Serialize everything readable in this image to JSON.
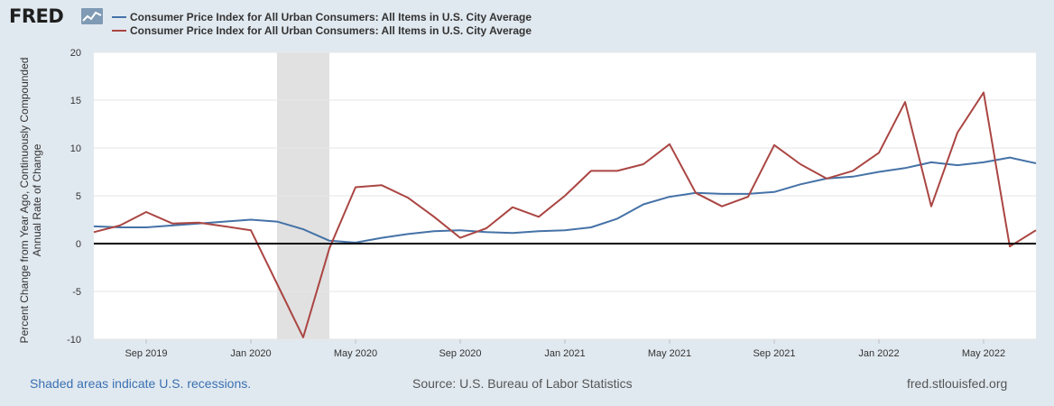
{
  "header": {
    "logo_text": "FRED",
    "logo_icon": "line-graph-icon"
  },
  "legend": [
    {
      "label": "Consumer Price Index for All Urban Consumers: All Items in U.S. City Average",
      "color": "#4572a7"
    },
    {
      "label": "Consumer Price Index for All Urban Consumers: All Items in U.S. City Average",
      "color": "#aa4643"
    }
  ],
  "footer": {
    "note": "Shaded areas indicate U.S. recessions.",
    "source": "Source: U.S. Bureau of Labor Statistics",
    "url": "fred.stlouisfed.org"
  },
  "chart_data": {
    "type": "line",
    "ylabel": "Percent Change from Year Ago, Continuously Compounded Annual Rate of Change",
    "ylim": [
      -10,
      20
    ],
    "yticks": [
      -10,
      -5,
      0,
      5,
      10,
      15,
      20
    ],
    "xlim": [
      "2019-07",
      "2022-07"
    ],
    "xticks": [
      {
        "value": "2019-09",
        "label": "Sep 2019"
      },
      {
        "value": "2020-01",
        "label": "Jan 2020"
      },
      {
        "value": "2020-05",
        "label": "May 2020"
      },
      {
        "value": "2020-09",
        "label": "Sep 2020"
      },
      {
        "value": "2021-01",
        "label": "Jan 2021"
      },
      {
        "value": "2021-05",
        "label": "May 2021"
      },
      {
        "value": "2021-09",
        "label": "Sep 2021"
      },
      {
        "value": "2022-01",
        "label": "Jan 2022"
      },
      {
        "value": "2022-05",
        "label": "May 2022"
      }
    ],
    "recessions": [
      {
        "start": "2020-02",
        "end": "2020-04"
      }
    ],
    "zero_line": true,
    "grid": true,
    "x": [
      "2019-07",
      "2019-08",
      "2019-09",
      "2019-10",
      "2019-11",
      "2019-12",
      "2020-01",
      "2020-02",
      "2020-03",
      "2020-04",
      "2020-05",
      "2020-06",
      "2020-07",
      "2020-08",
      "2020-09",
      "2020-10",
      "2020-11",
      "2020-12",
      "2021-01",
      "2021-02",
      "2021-03",
      "2021-04",
      "2021-05",
      "2021-06",
      "2021-07",
      "2021-08",
      "2021-09",
      "2021-10",
      "2021-11",
      "2021-12",
      "2022-01",
      "2022-02",
      "2022-03",
      "2022-04",
      "2022-05",
      "2022-06",
      "2022-07"
    ],
    "series": [
      {
        "color": "#4572a7",
        "values": [
          1.8,
          1.7,
          1.7,
          1.9,
          2.1,
          2.3,
          2.5,
          2.3,
          1.5,
          0.3,
          0.1,
          0.6,
          1.0,
          1.3,
          1.4,
          1.2,
          1.1,
          1.3,
          1.4,
          1.7,
          2.6,
          4.1,
          4.9,
          5.3,
          5.2,
          5.2,
          5.4,
          6.2,
          6.8,
          7.0,
          7.5,
          7.9,
          8.5,
          8.2,
          8.5,
          9.0,
          8.4
        ]
      },
      {
        "color": "#aa4643",
        "values": [
          1.2,
          1.9,
          3.3,
          2.1,
          2.2,
          1.8,
          1.4,
          -4.2,
          -9.8,
          -0.5,
          5.9,
          6.1,
          4.8,
          2.8,
          0.6,
          1.6,
          3.8,
          2.8,
          5.0,
          7.6,
          7.6,
          8.3,
          10.4,
          5.3,
          3.9,
          4.9,
          10.3,
          8.3,
          6.8,
          7.6,
          9.5,
          14.8,
          3.9,
          11.6,
          15.8,
          -0.3,
          1.4
        ]
      }
    ]
  }
}
